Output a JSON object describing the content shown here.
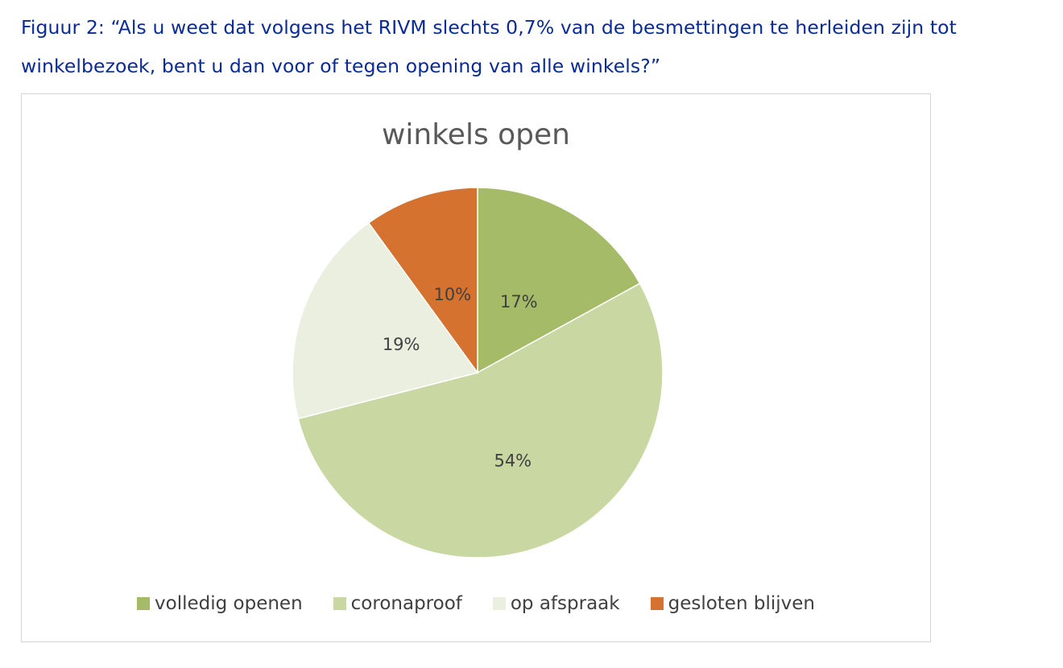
{
  "caption": {
    "line1": "Figuur 2: “Als u weet dat volgens het RIVM slechts 0,7% van de besmettingen te herleiden zijn tot",
    "line2": "winkelbezoek, bent u dan voor of tegen opening van alle winkels?”"
  },
  "chart_data": {
    "type": "pie",
    "title": "winkels open",
    "legend_position": "bottom",
    "slices": [
      {
        "name": "volledig openen",
        "value": 17,
        "label": "17%",
        "color": "#a5bb68"
      },
      {
        "name": "coronaproof",
        "value": 54,
        "label": "54%",
        "color": "#c9d7a3"
      },
      {
        "name": "op afspraak",
        "value": 19,
        "label": "19%",
        "color": "#ebefe0"
      },
      {
        "name": "gesloten blijven",
        "value": 10,
        "label": "10%",
        "color": "#d5722f"
      }
    ]
  }
}
